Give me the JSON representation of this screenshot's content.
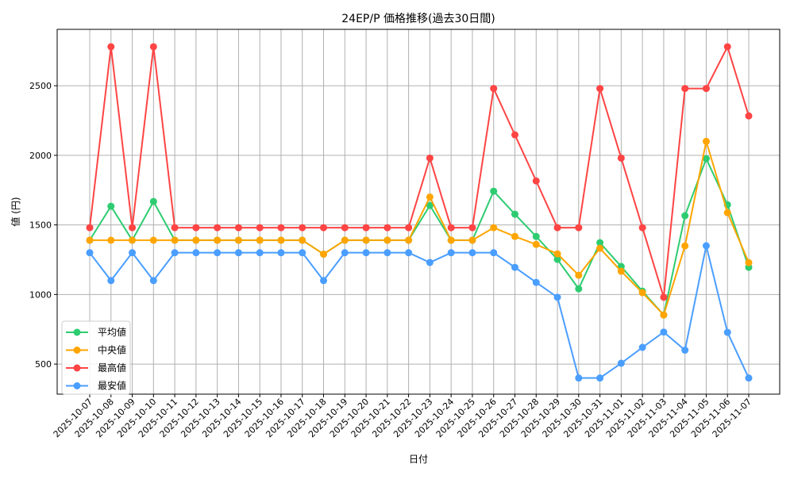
{
  "chart_data": {
    "type": "line",
    "title": "24EP/P 価格推移(過去30日間)",
    "xlabel": "日付",
    "ylabel": "値 (円)",
    "ylim": [
      284,
      2905
    ],
    "yticks": [
      500,
      1000,
      1500,
      2000,
      2500
    ],
    "grid": true,
    "legend_position": "bottom-left",
    "categories": [
      "2025-10-07",
      "2025-10-08",
      "2025-10-09",
      "2025-10-10",
      "2025-10-11",
      "2025-10-12",
      "2025-10-13",
      "2025-10-14",
      "2025-10-15",
      "2025-10-16",
      "2025-10-17",
      "2025-10-18",
      "2025-10-19",
      "2025-10-20",
      "2025-10-21",
      "2025-10-22",
      "2025-10-23",
      "2025-10-24",
      "2025-10-25",
      "2025-10-26",
      "2025-10-27",
      "2025-10-28",
      "2025-10-29",
      "2025-10-30",
      "2025-10-31",
      "2025-11-01",
      "2025-11-02",
      "2025-11-03",
      "2025-11-04",
      "2025-11-05",
      "2025-11-06",
      "2025-11-07"
    ],
    "series": [
      {
        "name": "平均値",
        "color": "#2ecc71",
        "values": [
          1390,
          1634,
          1390,
          1668,
          1390,
          1390,
          1390,
          1390,
          1390,
          1390,
          1390,
          1290,
          1390,
          1390,
          1390,
          1390,
          1640,
          1390,
          1390,
          1742,
          1577,
          1417,
          1252,
          1041,
          1372,
          1201,
          1024,
          853,
          1566,
          1976,
          1645,
          1195
        ]
      },
      {
        "name": "中央値",
        "color": "#ffa500",
        "values": [
          1390,
          1390,
          1390,
          1390,
          1390,
          1390,
          1390,
          1390,
          1390,
          1390,
          1390,
          1290,
          1390,
          1390,
          1390,
          1390,
          1700,
          1390,
          1390,
          1480,
          1417,
          1360,
          1292,
          1138,
          1332,
          1167,
          1013,
          853,
          1349,
          2100,
          1588,
          1229
        ]
      },
      {
        "name": "最高値",
        "color": "#ff4444",
        "values": [
          1480,
          2780,
          1480,
          2780,
          1480,
          1480,
          1480,
          1480,
          1480,
          1480,
          1480,
          1480,
          1480,
          1480,
          1480,
          1480,
          1980,
          1480,
          1480,
          2480,
          2147,
          1816,
          1480,
          1480,
          2480,
          1980,
          1480,
          980,
          2480,
          2480,
          2780,
          2283
        ]
      },
      {
        "name": "最安値",
        "color": "#4a9eff",
        "values": [
          1300,
          1100,
          1300,
          1100,
          1300,
          1300,
          1300,
          1300,
          1300,
          1300,
          1300,
          1100,
          1300,
          1300,
          1300,
          1300,
          1230,
          1300,
          1300,
          1300,
          1195,
          1087,
          980,
          400,
          400,
          506,
          620,
          730,
          600,
          1350,
          728,
          400
        ]
      }
    ]
  }
}
